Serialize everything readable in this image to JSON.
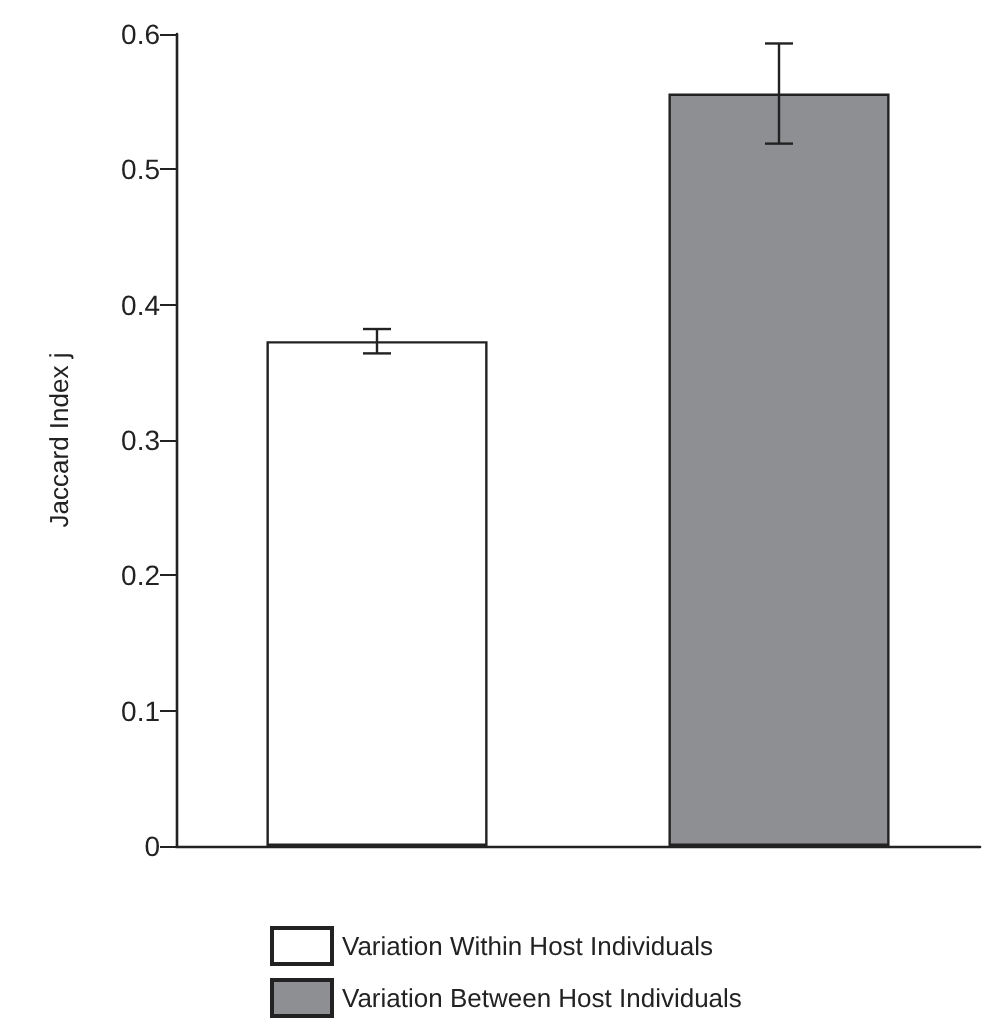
{
  "chart_data": {
    "type": "bar",
    "ylabel": "Jaccard Index j",
    "categories": [
      null,
      null
    ],
    "series": [
      {
        "name": "Variation Within Host Individuals",
        "color": "#ffffff",
        "values": [
          0.373,
          null
        ],
        "errors": [
          0.009,
          null
        ]
      },
      {
        "name": "Variation Between Host Individuals",
        "color": "#8e8f93",
        "values": [
          null,
          0.556
        ],
        "errors": [
          null,
          0.037
        ]
      }
    ],
    "ylim": [
      0,
      0.6
    ],
    "yticks": [
      0,
      0.1,
      0.2,
      0.3,
      0.4,
      0.5,
      0.6
    ],
    "grid": false,
    "legend": "bottom"
  }
}
